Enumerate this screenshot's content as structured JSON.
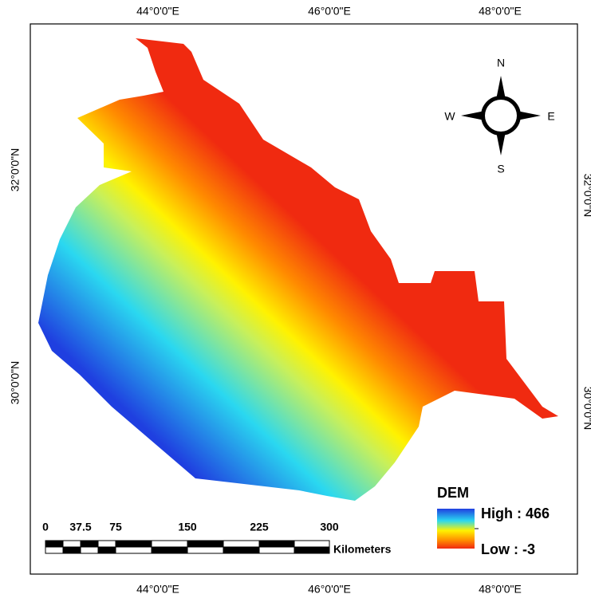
{
  "graticule": {
    "top": [
      "44°0'0\"E",
      "46°0'0\"E",
      "48°0'0\"E"
    ],
    "bottom": [
      "44°0'0\"E",
      "46°0'0\"E",
      "48°0'0\"E"
    ],
    "left": [
      "32°0'0\"N",
      "30°0'0\"N"
    ],
    "right": [
      "32°0'0\"N",
      "30°0'0\"N"
    ]
  },
  "compass": {
    "n": "N",
    "e": "E",
    "s": "S",
    "w": "W"
  },
  "legend": {
    "title": "DEM",
    "high_label": "High : 466",
    "low_label": "Low : -3"
  },
  "scale_bar": {
    "ticks": [
      "0",
      "37.5",
      "75",
      "150",
      "225",
      "300"
    ],
    "unit": "Kilometers"
  }
}
